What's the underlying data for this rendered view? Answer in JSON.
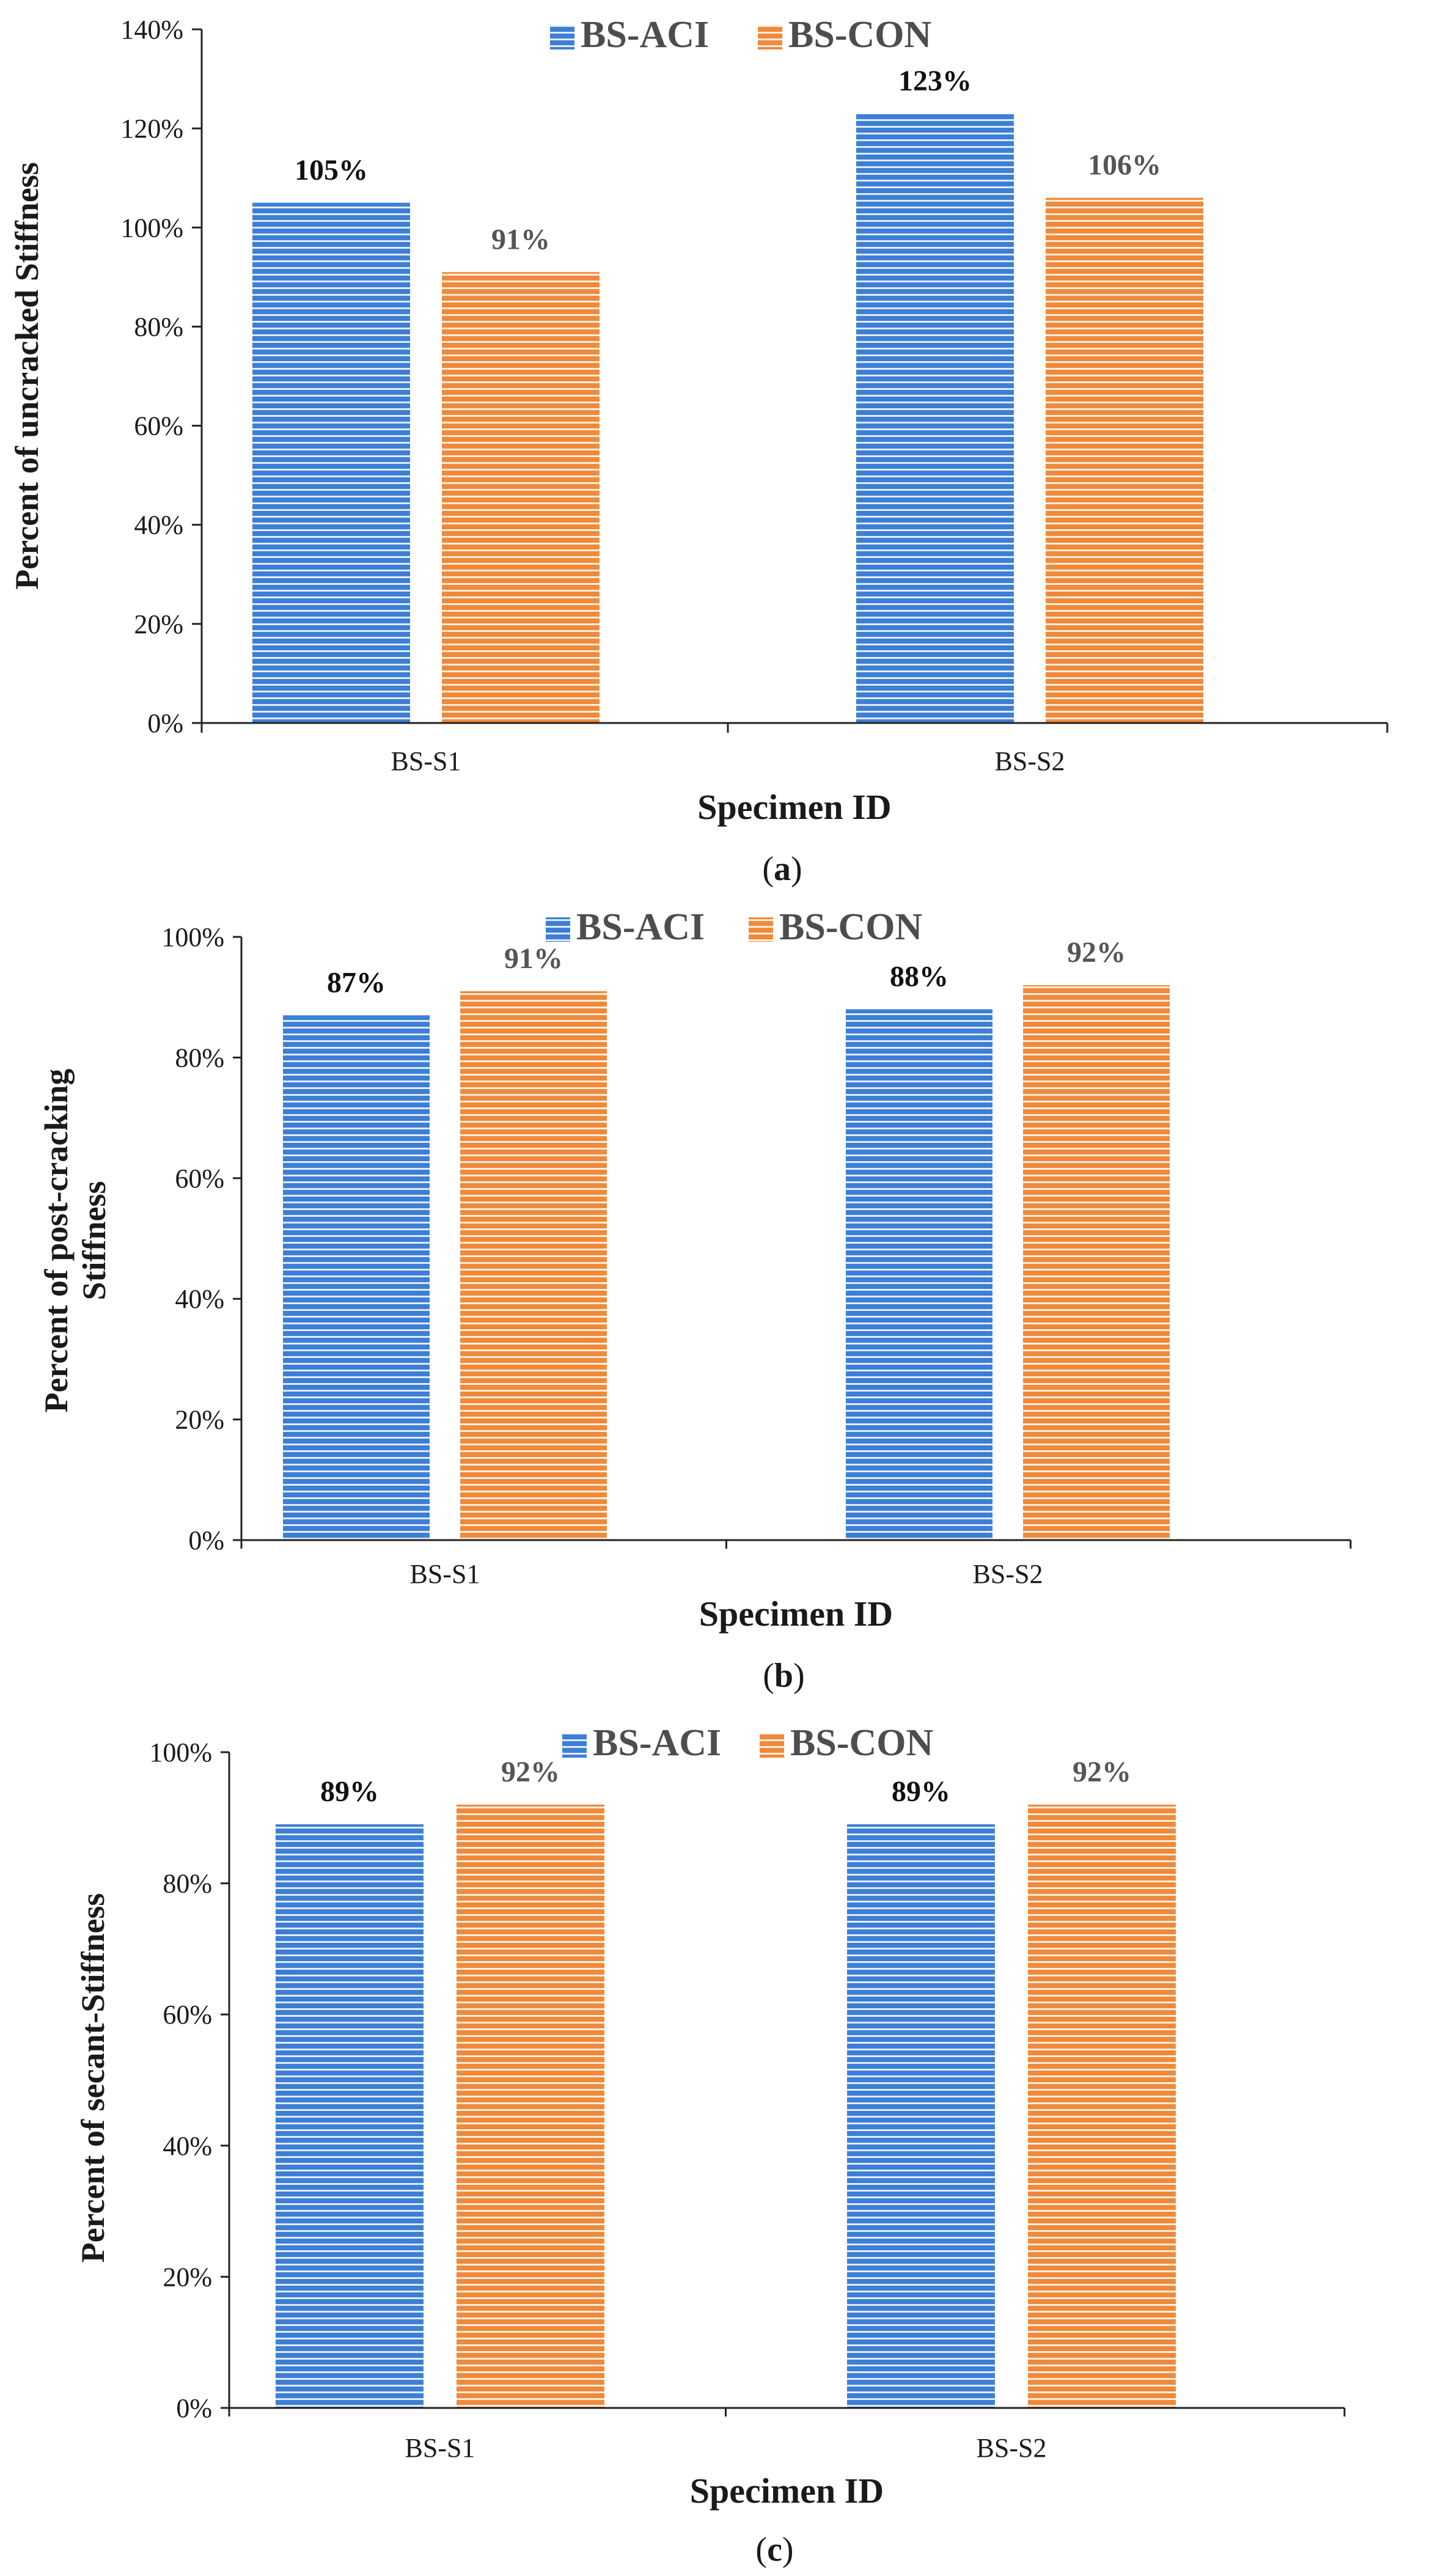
{
  "colors": {
    "series_a": "#3d7fd6",
    "series_a_stripe": "#ffffff",
    "series_b": "#f08a3a",
    "series_b_stripe": "#ffffff",
    "axis": "#222222"
  },
  "chart_data": [
    {
      "type": "bar",
      "panel_label": "(a)",
      "caption_prefix": "(",
      "caption_letter": "a",
      "caption_suffix": ")",
      "categories": [
        "BS-S1",
        "BS-S2"
      ],
      "series": [
        {
          "name": "BS-ACI",
          "values": [
            105,
            123
          ],
          "labels": [
            "105%",
            "123%"
          ]
        },
        {
          "name": "BS-CON",
          "values": [
            91,
            106
          ],
          "labels": [
            "91%",
            "106%"
          ]
        }
      ],
      "xlabel": "Specimen ID",
      "ylabel": "Percent  of uncracked Stiffness",
      "ylabel_lines": [
        "Percent  of uncracked Stiffness"
      ],
      "ylim": [
        0,
        140
      ],
      "yticks": [
        0,
        20,
        40,
        60,
        80,
        100,
        120,
        140
      ],
      "ytick_labels": [
        "0%",
        "20%",
        "40%",
        "60%",
        "80%",
        "100%",
        "120%",
        "140%"
      ],
      "legend_position": "top-center",
      "grid": false
    },
    {
      "type": "bar",
      "panel_label": "(b)",
      "caption_prefix": "(",
      "caption_letter": "b",
      "caption_suffix": ")",
      "categories": [
        "BS-S1",
        "BS-S2"
      ],
      "series": [
        {
          "name": "BS-ACI",
          "values": [
            87,
            88
          ],
          "labels": [
            "87%",
            "88%"
          ]
        },
        {
          "name": "BS-CON",
          "values": [
            91,
            92
          ],
          "labels": [
            "91%",
            "92%"
          ]
        }
      ],
      "xlabel": "Specimen ID",
      "ylabel": "Percent  of post-cracking Stiffness",
      "ylabel_lines": [
        "Percent  of post-cracking",
        "Stiffness"
      ],
      "ylim": [
        0,
        100
      ],
      "yticks": [
        0,
        20,
        40,
        60,
        80,
        100
      ],
      "ytick_labels": [
        "0%",
        "20%",
        "40%",
        "60%",
        "80%",
        "100%"
      ],
      "legend_position": "top-center",
      "grid": false
    },
    {
      "type": "bar",
      "panel_label": "(c)",
      "caption_prefix": "(",
      "caption_letter": "c",
      "caption_suffix": ")",
      "categories": [
        "BS-S1",
        "BS-S2"
      ],
      "series": [
        {
          "name": "BS-ACI",
          "values": [
            89,
            89
          ],
          "labels": [
            "89%",
            "89%"
          ]
        },
        {
          "name": "BS-CON",
          "values": [
            92,
            92
          ],
          "labels": [
            "92%",
            "92%"
          ]
        }
      ],
      "xlabel": "Specimen ID",
      "ylabel": "Percent  of secant-Stiffness",
      "ylabel_lines": [
        "Percent  of secant-Stiffness"
      ],
      "ylim": [
        0,
        100
      ],
      "yticks": [
        0,
        20,
        40,
        60,
        80,
        100
      ],
      "ytick_labels": [
        "0%",
        "20%",
        "40%",
        "60%",
        "80%",
        "100%"
      ],
      "legend_position": "top-center",
      "grid": false
    }
  ]
}
